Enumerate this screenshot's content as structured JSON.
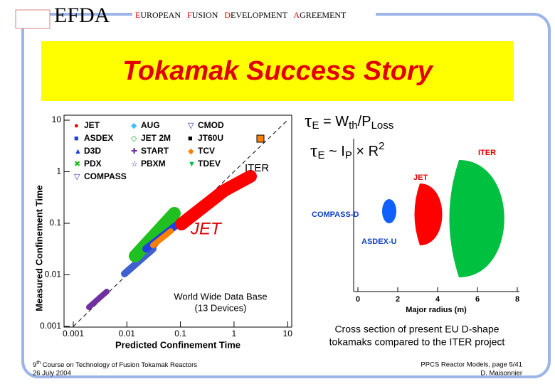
{
  "header": {
    "logo": "EFDA",
    "agreement": [
      "EUROPEAN",
      "FUSION",
      "DEVELOPMENT",
      "AGREEMENT"
    ]
  },
  "title": "Tokamak Success Story",
  "plot": {
    "y_label": "Measured Confinement Time",
    "x_label": "Predicted Confinement Time",
    "ticks": [
      "0.001",
      "0.01",
      "0.1",
      "1",
      "10"
    ],
    "legend": [
      "JET",
      "AUG",
      "CMOD",
      "ASDEX",
      "JET 2M",
      "JT60U",
      "D3D",
      "START",
      "TCV",
      "PDX",
      "PBXM",
      "TDEV",
      "COMPASS"
    ],
    "iter": "ITER",
    "jet": "JET",
    "database": [
      "World Wide Data Base",
      "(13 Devices)"
    ]
  },
  "formulas": {
    "scaling": [
      "τ",
      "E",
      " = W",
      "th",
      "/P",
      "Loss"
    ],
    "size": [
      "τ",
      "E",
      " ~ I",
      "P",
      " × R",
      "2"
    ]
  },
  "cross_section": {
    "labels": [
      "ITER",
      "JET",
      "COMPASS-D",
      "ASDEX-U"
    ],
    "x_label": "Major radius (m)",
    "ticks": [
      "0",
      "2",
      "4",
      "6",
      "8"
    ],
    "caption": [
      "Cross section of present EU D-shape",
      "tokamaks compared to the ITER project"
    ]
  },
  "footer": {
    "course": [
      "9",
      "th",
      " Course on Technology of Fusion Tokamak Reactors"
    ],
    "date": "26 July 2004",
    "page": "PPCS Reactor Models, page 5/41",
    "author": "D. Maisonnier"
  }
}
